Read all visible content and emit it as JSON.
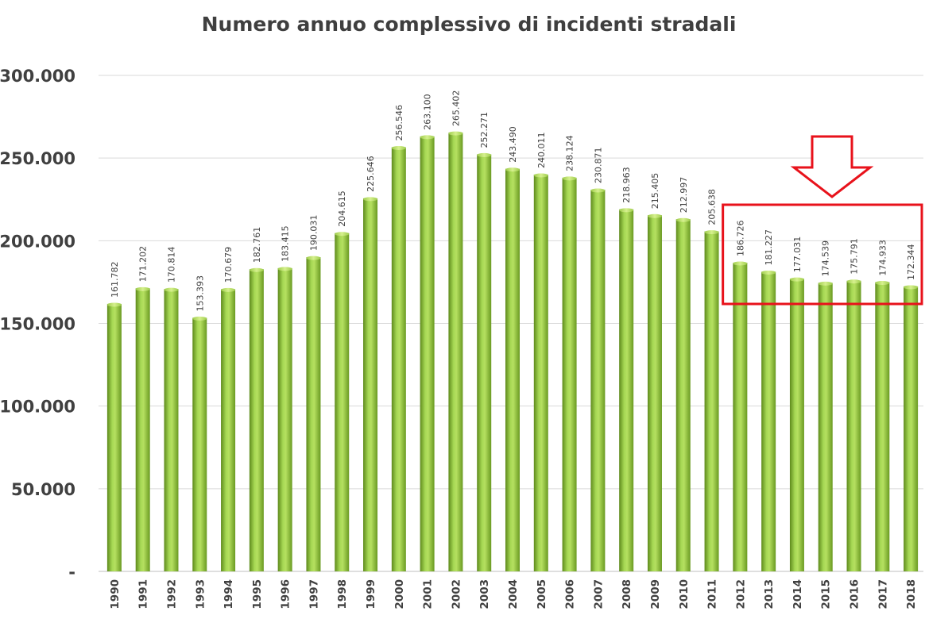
{
  "chart_data": {
    "type": "bar",
    "title": "Numero annuo complessivo di incidenti stradali",
    "xlabel": "",
    "ylabel": "",
    "ylim": [
      0,
      300000
    ],
    "grid": true,
    "legend": "none",
    "categories": [
      "1990",
      "1991",
      "1992",
      "1993",
      "1994",
      "1995",
      "1996",
      "1997",
      "1998",
      "1999",
      "2000",
      "2001",
      "2002",
      "2003",
      "2004",
      "2005",
      "2006",
      "2007",
      "2008",
      "2009",
      "2010",
      "2011",
      "2012",
      "2013",
      "2014",
      "2015",
      "2016",
      "2017",
      "2018"
    ],
    "values": [
      161782,
      171202,
      170814,
      153393,
      170679,
      182761,
      183415,
      190031,
      204615,
      225646,
      256546,
      263100,
      265402,
      252271,
      243490,
      240011,
      238124,
      230871,
      218963,
      215405,
      212997,
      205638,
      186726,
      181227,
      177031,
      174539,
      175791,
      174933,
      172344
    ],
    "data_labels": [
      "161.782",
      "171.202",
      "170.814",
      "153.393",
      "170.679",
      "182.761",
      "183.415",
      "190.031",
      "204.615",
      "225.646",
      "256.546",
      "263.100",
      "265.402",
      "252.271",
      "243.490",
      "240.011",
      "238.124",
      "230.871",
      "218.963",
      "215.405",
      "212.997",
      "205.638",
      "186.726",
      "181.227",
      "177.031",
      "174.539",
      "175.791",
      "174.933",
      "172.344"
    ],
    "y_ticks": [
      {
        "value": 0,
        "label": "-"
      },
      {
        "value": 50000,
        "label": "50.000"
      },
      {
        "value": 100000,
        "label": "100.000"
      },
      {
        "value": 150000,
        "label": "150.000"
      },
      {
        "value": 200000,
        "label": "200.000"
      },
      {
        "value": 250000,
        "label": "250.000"
      },
      {
        "value": 300000,
        "label": "300.000"
      }
    ],
    "bar_color": "#8cc63f",
    "annotation": {
      "type": "highlight-box-with-arrow",
      "from_category": "2012",
      "to_category": "2018",
      "color": "#e8121b"
    }
  }
}
